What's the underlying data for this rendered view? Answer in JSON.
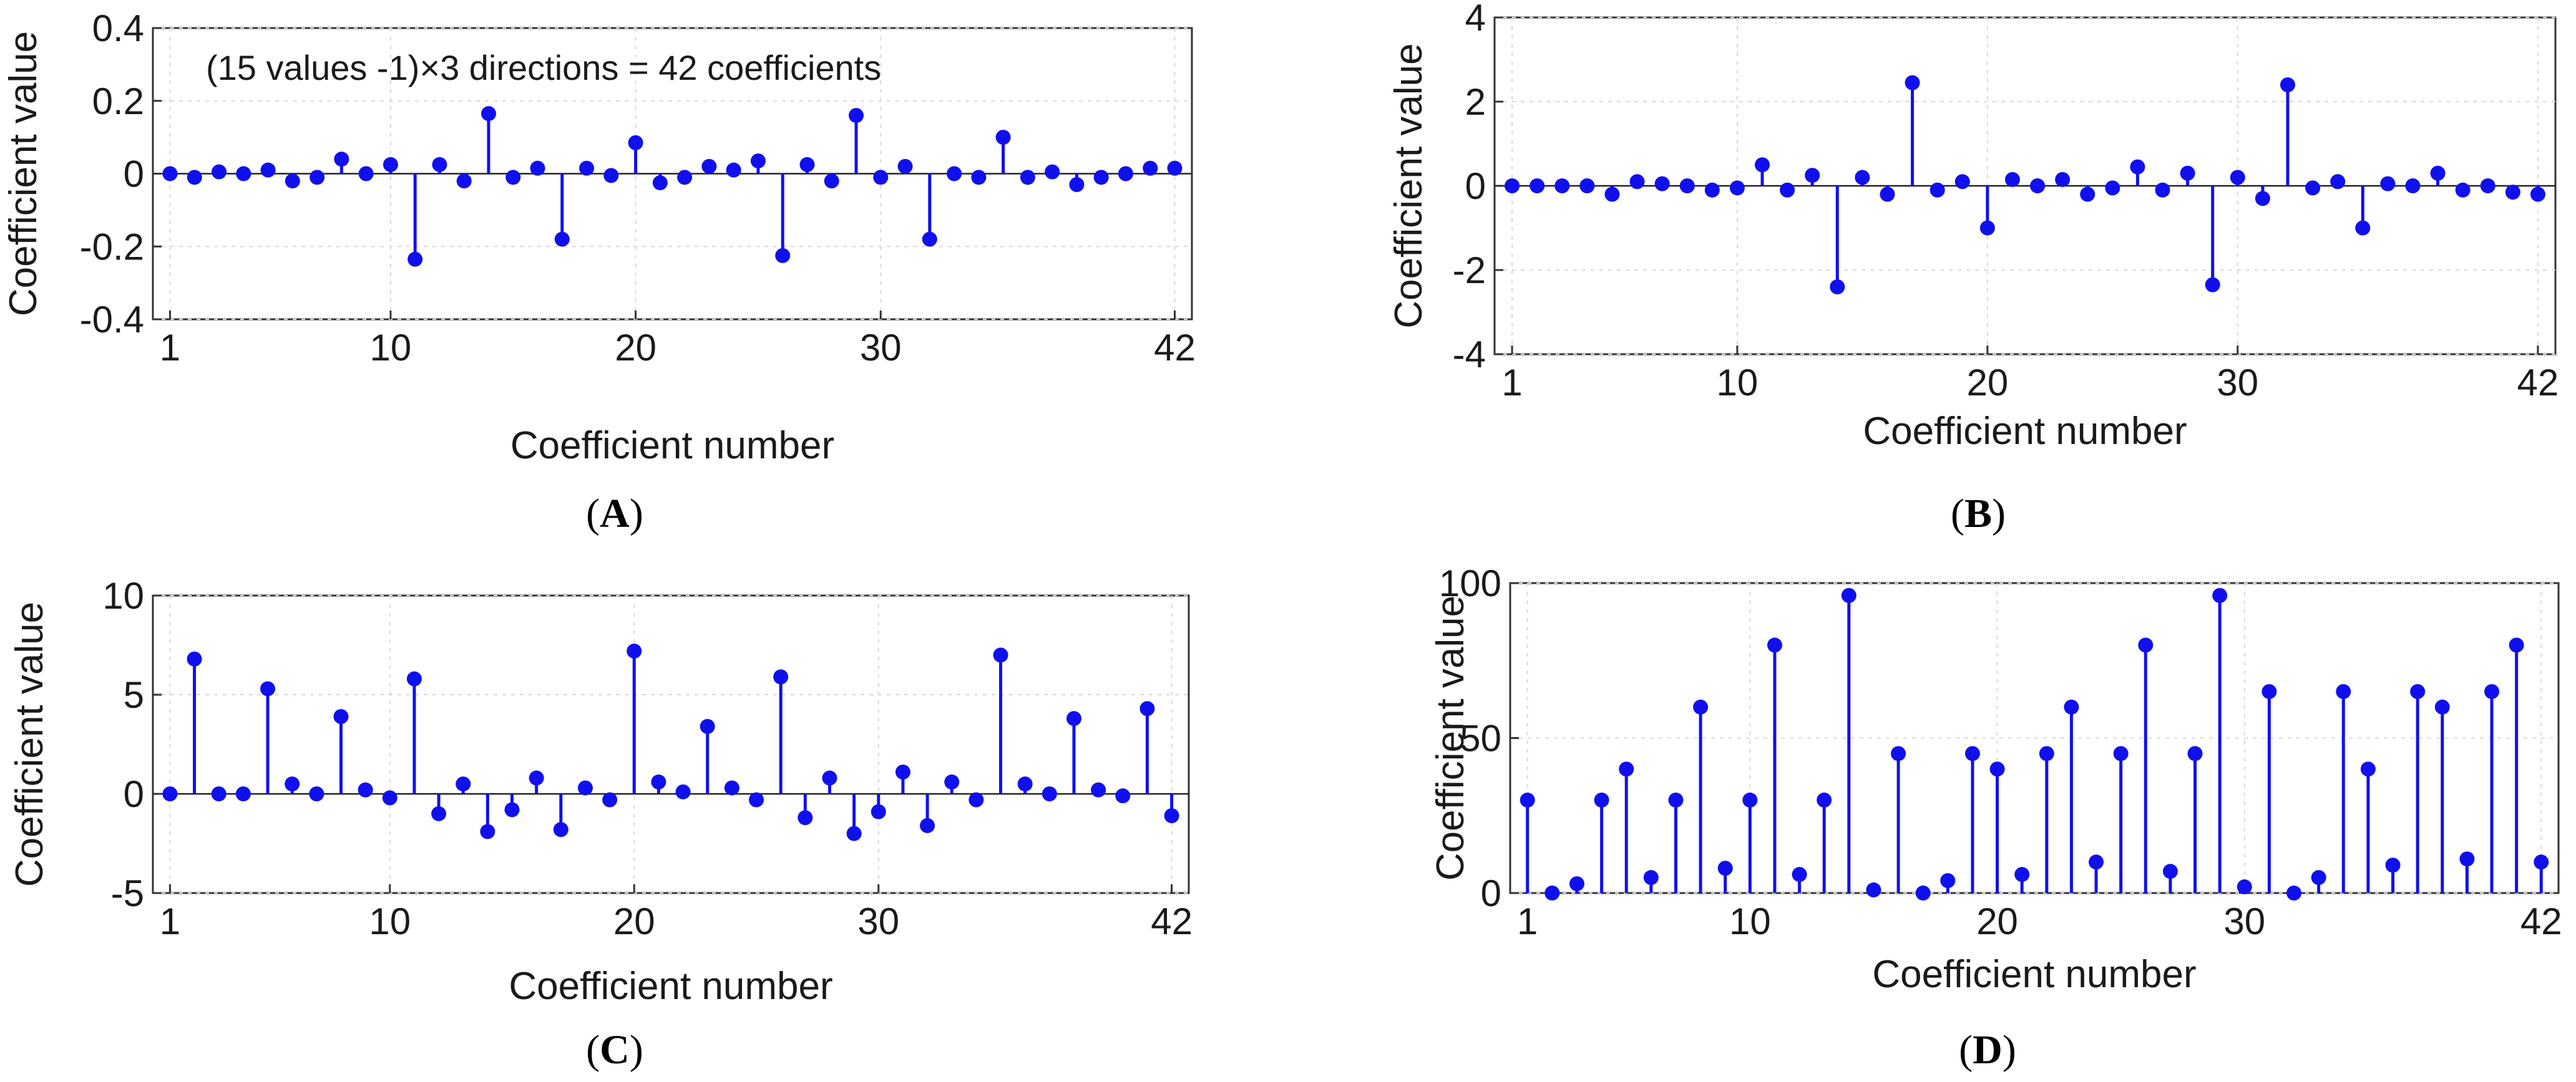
{
  "figure": {
    "stem_color": "#1010ee",
    "panels": [
      {
        "id": "A",
        "label_open": "(",
        "label_letter": "A",
        "label_close": ")"
      },
      {
        "id": "B",
        "label_open": "(",
        "label_letter": "B",
        "label_close": ")"
      },
      {
        "id": "C",
        "label_open": "(",
        "label_letter": "C",
        "label_close": ")"
      },
      {
        "id": "D",
        "label_open": "(",
        "label_letter": "D",
        "label_close": ")"
      }
    ]
  },
  "chart_data": [
    {
      "id": "A",
      "type": "stem",
      "annotation": "(15 values -1)×3 directions = 42 coefficients",
      "xlabel": "Coefficient number",
      "ylabel": "Coefficient value",
      "xlim": [
        0.3,
        42.7
      ],
      "ylim": [
        -0.4,
        0.4
      ],
      "xticks": [
        1,
        10,
        20,
        30,
        42
      ],
      "yticks": [
        -0.4,
        -0.2,
        0,
        0.2,
        0.4
      ],
      "ytick_labels": [
        "-0.4",
        "-0.2",
        "0",
        "0.2",
        "0.4"
      ],
      "grid": true,
      "x": [
        1,
        2,
        3,
        4,
        5,
        6,
        7,
        8,
        9,
        10,
        11,
        12,
        13,
        14,
        15,
        16,
        17,
        18,
        19,
        20,
        21,
        22,
        23,
        24,
        25,
        26,
        27,
        28,
        29,
        30,
        31,
        32,
        33,
        34,
        35,
        36,
        37,
        38,
        39,
        40,
        41,
        42
      ],
      "values": [
        0.0,
        -0.01,
        0.005,
        0.0,
        0.01,
        -0.02,
        -0.01,
        0.04,
        0.0,
        0.025,
        -0.235,
        0.025,
        -0.02,
        0.165,
        -0.01,
        0.015,
        -0.18,
        0.015,
        -0.005,
        0.085,
        -0.025,
        -0.01,
        0.02,
        0.01,
        0.035,
        -0.225,
        0.025,
        -0.02,
        0.16,
        -0.01,
        0.02,
        -0.18,
        0.0,
        -0.01,
        0.1,
        -0.01,
        0.005,
        -0.03,
        -0.01,
        0.0,
        0.015,
        0.015
      ]
    },
    {
      "id": "B",
      "type": "stem",
      "xlabel": "Coefficient number",
      "ylabel": "Coefficient value",
      "xlim": [
        0.3,
        42.7
      ],
      "ylim": [
        -4,
        4
      ],
      "xticks": [
        1,
        10,
        20,
        30,
        42
      ],
      "yticks": [
        -4,
        -2,
        0,
        2,
        4
      ],
      "ytick_labels": [
        "-4",
        "-2",
        "0",
        "2",
        "4"
      ],
      "grid": true,
      "x": [
        1,
        2,
        3,
        4,
        5,
        6,
        7,
        8,
        9,
        10,
        11,
        12,
        13,
        14,
        15,
        16,
        17,
        18,
        19,
        20,
        21,
        22,
        23,
        24,
        25,
        26,
        27,
        28,
        29,
        30,
        31,
        32,
        33,
        34,
        35,
        36,
        37,
        38,
        39,
        40,
        41,
        42
      ],
      "values": [
        0.0,
        0.0,
        0.0,
        0.0,
        -0.2,
        0.1,
        0.05,
        0.0,
        -0.1,
        -0.05,
        0.5,
        -0.1,
        0.25,
        -2.4,
        0.2,
        -0.2,
        2.45,
        -0.1,
        0.1,
        -1.0,
        0.15,
        0.0,
        0.15,
        -0.2,
        -0.05,
        0.45,
        -0.1,
        0.3,
        -2.35,
        0.2,
        -0.3,
        2.4,
        -0.05,
        0.1,
        -1.0,
        0.05,
        0.0,
        0.3,
        -0.1,
        0.0,
        -0.15,
        -0.2
      ]
    },
    {
      "id": "C",
      "type": "stem",
      "xlabel": "Coefficient number",
      "ylabel": "Coefficient value",
      "xlim": [
        0.3,
        42.7
      ],
      "ylim": [
        -5,
        10
      ],
      "xticks": [
        1,
        10,
        20,
        30,
        42
      ],
      "yticks": [
        -5,
        0,
        5,
        10
      ],
      "ytick_labels": [
        "-5",
        "0",
        "5",
        "10"
      ],
      "grid": true,
      "x": [
        1,
        2,
        3,
        4,
        5,
        6,
        7,
        8,
        9,
        10,
        11,
        12,
        13,
        14,
        15,
        16,
        17,
        18,
        19,
        20,
        21,
        22,
        23,
        24,
        25,
        26,
        27,
        28,
        29,
        30,
        31,
        32,
        33,
        34,
        35,
        36,
        37,
        38,
        39,
        40,
        41,
        42
      ],
      "values": [
        0.0,
        6.8,
        0.0,
        0.0,
        5.3,
        0.5,
        0.0,
        3.9,
        0.2,
        -0.2,
        5.8,
        -1.0,
        0.5,
        -1.9,
        -0.8,
        0.8,
        -1.8,
        0.3,
        -0.3,
        7.2,
        0.6,
        0.1,
        3.4,
        0.3,
        -0.3,
        5.9,
        -1.2,
        0.8,
        -2.0,
        -0.9,
        1.1,
        -1.6,
        0.6,
        -0.3,
        7.0,
        0.5,
        0.0,
        3.8,
        0.2,
        -0.1,
        4.3,
        -1.1
      ]
    },
    {
      "id": "D",
      "type": "stem",
      "xlabel": "Coefficient number",
      "ylabel": "Coefficient value",
      "xlim": [
        0.3,
        42.7
      ],
      "ylim": [
        0,
        100
      ],
      "xticks": [
        1,
        10,
        20,
        30,
        42
      ],
      "yticks": [
        0,
        50,
        100
      ],
      "ytick_labels": [
        "0",
        "50",
        "100"
      ],
      "grid": true,
      "x": [
        1,
        2,
        3,
        4,
        5,
        6,
        7,
        8,
        9,
        10,
        11,
        12,
        13,
        14,
        15,
        16,
        17,
        18,
        19,
        20,
        21,
        22,
        23,
        24,
        25,
        26,
        27,
        28,
        29,
        30,
        31,
        32,
        33,
        34,
        35,
        36,
        37,
        38,
        39,
        40,
        41,
        42
      ],
      "values": [
        30,
        0,
        3,
        30,
        40,
        5,
        30,
        60,
        8,
        30,
        80,
        6,
        30,
        96,
        1,
        45,
        0,
        4,
        45,
        40,
        6,
        45,
        60,
        10,
        45,
        80,
        7,
        45,
        96,
        2,
        65,
        0,
        5,
        65,
        40,
        9,
        65,
        60,
        11,
        65,
        80,
        10
      ]
    }
  ]
}
